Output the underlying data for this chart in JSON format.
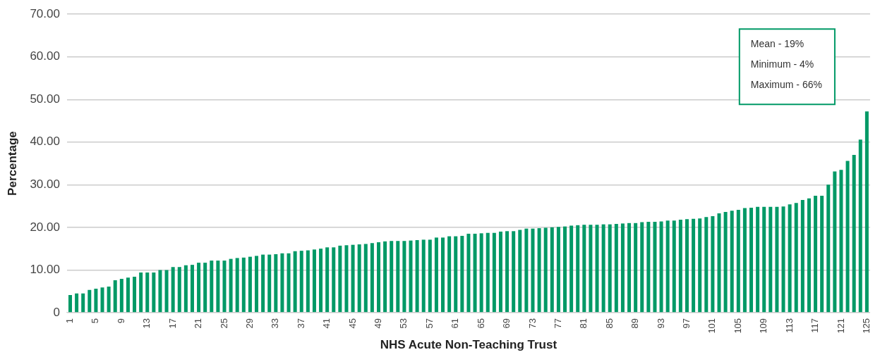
{
  "chart_data": {
    "type": "bar",
    "xlabel": "NHS Acute Non-Teaching Trust",
    "ylabel": "Percentage",
    "categories": [
      "1",
      null,
      null,
      null,
      "5",
      null,
      null,
      null,
      "9",
      null,
      null,
      null,
      "13",
      null,
      null,
      null,
      "17",
      null,
      null,
      null,
      "21",
      null,
      null,
      null,
      "25",
      null,
      null,
      null,
      "29",
      null,
      null,
      null,
      "33",
      null,
      null,
      null,
      "37",
      null,
      null,
      null,
      "41",
      null,
      null,
      null,
      "45",
      null,
      null,
      null,
      "49",
      null,
      null,
      null,
      "53",
      null,
      null,
      null,
      "57",
      null,
      null,
      null,
      "61",
      null,
      null,
      null,
      "65",
      null,
      null,
      null,
      "69",
      null,
      null,
      null,
      "73",
      null,
      null,
      null,
      "77",
      null,
      null,
      null,
      "81",
      null,
      null,
      null,
      "85",
      null,
      null,
      null,
      "89",
      null,
      null,
      null,
      "93",
      null,
      null,
      null,
      "97",
      null,
      null,
      null,
      "101",
      null,
      null,
      null,
      "105",
      null,
      null,
      null,
      "109",
      null,
      null,
      null,
      "113",
      null,
      null,
      null,
      "117",
      null,
      null,
      null,
      "121",
      null,
      null,
      null,
      "125"
    ],
    "values": [
      4.1,
      4.5,
      4.5,
      5.3,
      5.6,
      5.9,
      6.1,
      7.6,
      7.9,
      8.2,
      8.4,
      9.4,
      9.4,
      9.4,
      10.0,
      10.0,
      10.7,
      10.7,
      11.1,
      11.2,
      11.7,
      11.7,
      12.2,
      12.2,
      12.2,
      12.6,
      12.8,
      12.9,
      13.1,
      13.3,
      13.6,
      13.6,
      13.7,
      13.9,
      13.9,
      14.4,
      14.5,
      14.6,
      14.8,
      15.0,
      15.3,
      15.3,
      15.7,
      15.8,
      15.9,
      16.0,
      16.1,
      16.3,
      16.5,
      16.7,
      16.8,
      16.8,
      16.8,
      16.9,
      17.0,
      17.1,
      17.1,
      17.6,
      17.6,
      17.9,
      17.9,
      18.0,
      18.5,
      18.5,
      18.6,
      18.7,
      18.7,
      19.0,
      19.1,
      19.1,
      19.4,
      19.7,
      19.7,
      19.8,
      19.9,
      20.0,
      20.1,
      20.2,
      20.4,
      20.5,
      20.6,
      20.6,
      20.6,
      20.7,
      20.7,
      20.8,
      20.9,
      21.0,
      21.0,
      21.2,
      21.3,
      21.3,
      21.4,
      21.6,
      21.6,
      21.8,
      21.9,
      22.0,
      22.1,
      22.4,
      22.6,
      23.3,
      23.6,
      23.9,
      24.1,
      24.5,
      24.6,
      24.8,
      24.8,
      24.8,
      24.8,
      24.9,
      25.4,
      25.7,
      26.4,
      26.8,
      27.4,
      27.4,
      30.0,
      33.1,
      33.5,
      35.6,
      37.0,
      40.6,
      47.2
    ],
    "color": "#009966",
    "ylim": [
      0,
      70
    ],
    "yticks": [
      {
        "value": 0,
        "label": "0"
      },
      {
        "value": 10,
        "label": "10.00"
      },
      {
        "value": 20,
        "label": "20.00"
      },
      {
        "value": 30,
        "label": "30.00"
      },
      {
        "value": 40,
        "label": "40.00"
      },
      {
        "value": 50,
        "label": "50.00"
      },
      {
        "value": 60,
        "label": "60.00"
      },
      {
        "value": 70,
        "label": "70.00"
      }
    ],
    "grid": "y",
    "legend": false,
    "annotations": [
      "Mean - 19%",
      "Minimum - 4%",
      "Maximum - 66%"
    ]
  }
}
